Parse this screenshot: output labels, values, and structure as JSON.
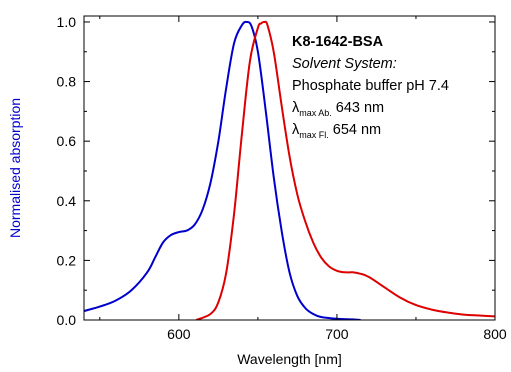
{
  "chart_data": {
    "type": "line",
    "xlabel": "Wavelength [nm]",
    "ylabel": "Normalised absorption",
    "xlim": [
      540,
      800
    ],
    "ylim": [
      0,
      1.02
    ],
    "x_ticks": [
      600,
      700,
      800
    ],
    "x_tick_labels": [
      "600",
      "700",
      "800"
    ],
    "y_ticks": [
      0,
      0.2,
      0.4,
      0.6,
      0.8,
      1.0
    ],
    "y_tick_labels": [
      "0.0",
      "0.2",
      "0.4",
      "0.6",
      "0.8",
      "1.0"
    ],
    "grid": false,
    "annotation": {
      "title": "K8-1642-BSA",
      "solvent_label": "Solvent System:",
      "solvent_value": "Phosphate buffer pH 7.4",
      "lambda_symbol": "λ",
      "abs_subscript": "max Ab.",
      "abs_value": "643 nm",
      "fl_subscript": "max Fl.",
      "fl_value": "654 nm"
    },
    "colors": {
      "absorption": "#0000cc",
      "fluorescence": "#dd0000",
      "ylabel": "#0000cc",
      "axis": "#000000"
    },
    "series": [
      {
        "color": "#0000cc",
        "x": [
          540,
          550,
          560,
          570,
          580,
          585,
          590,
          595,
          600,
          605,
          610,
          615,
          620,
          625,
          630,
          635,
          640,
          643,
          646,
          650,
          655,
          660,
          665,
          670,
          675,
          680,
          685,
          690,
          700,
          710,
          715
        ],
        "y": [
          0.03,
          0.045,
          0.065,
          0.1,
          0.16,
          0.21,
          0.26,
          0.285,
          0.295,
          0.3,
          0.32,
          0.37,
          0.46,
          0.6,
          0.78,
          0.93,
          0.99,
          1.0,
          0.985,
          0.9,
          0.7,
          0.48,
          0.3,
          0.16,
          0.08,
          0.04,
          0.02,
          0.01,
          0.004,
          0.002,
          0.0
        ]
      },
      {
        "color": "#dd0000",
        "x": [
          611,
          620,
          625,
          630,
          635,
          640,
          645,
          650,
          652,
          654,
          656,
          660,
          665,
          670,
          675,
          680,
          685,
          690,
          695,
          700,
          705,
          710,
          715,
          720,
          730,
          740,
          750,
          760,
          770,
          780,
          790,
          800
        ],
        "y": [
          0.0,
          0.02,
          0.06,
          0.16,
          0.36,
          0.63,
          0.87,
          0.98,
          0.995,
          1.0,
          0.99,
          0.9,
          0.72,
          0.55,
          0.42,
          0.33,
          0.26,
          0.21,
          0.18,
          0.165,
          0.16,
          0.16,
          0.155,
          0.145,
          0.11,
          0.075,
          0.05,
          0.035,
          0.025,
          0.018,
          0.015,
          0.012
        ]
      }
    ]
  }
}
